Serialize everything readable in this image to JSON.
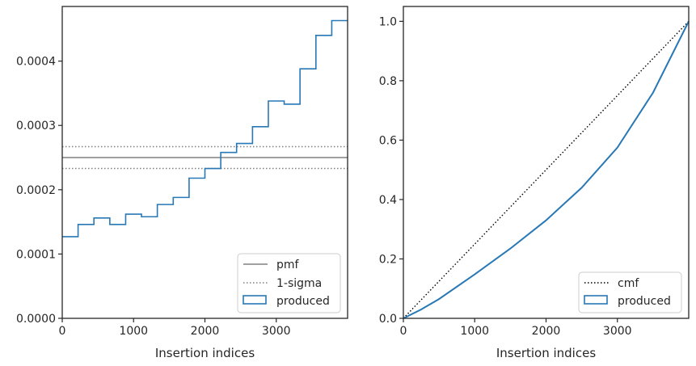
{
  "chart_data": [
    {
      "type": "histogram-step",
      "xlabel": "Insertion indices",
      "ylabel": "",
      "xlim": [
        0,
        4000
      ],
      "ylim": [
        0,
        0.000485
      ],
      "x_ticks": [
        0,
        1000,
        2000,
        3000
      ],
      "x_tick_labels": [
        "0",
        "1000",
        "2000",
        "3000"
      ],
      "y_ticks": [
        0,
        0.0001,
        0.0002,
        0.0003,
        0.0004
      ],
      "y_tick_labels": [
        "0.0000",
        "0.0001",
        "0.0002",
        "0.0003",
        "0.0004"
      ],
      "bin_edges": [
        0,
        222,
        444,
        667,
        889,
        1111,
        1333,
        1556,
        1778,
        2000,
        2222,
        2444,
        2667,
        2889,
        3111,
        3333,
        3556,
        3778,
        4000
      ],
      "series": [
        {
          "name": "produced",
          "style": "step",
          "color": "#2878b5",
          "values": [
            0.000127,
            0.000146,
            0.000156,
            0.000146,
            0.000162,
            0.000158,
            0.000177,
            0.000188,
            0.000218,
            0.000233,
            0.000258,
            0.000272,
            0.000298,
            0.000338,
            0.000333,
            0.000388,
            0.00044,
            0.000463
          ]
        }
      ],
      "reference_lines": [
        {
          "name": "pmf",
          "style": "solid",
          "color": "#808080",
          "y": 0.00025
        },
        {
          "name": "1-sigma",
          "style": "dotted",
          "color": "#808080",
          "y": 0.000267
        },
        {
          "name": "1-sigma",
          "style": "dotted",
          "color": "#808080",
          "y": 0.000233
        }
      ],
      "legend": {
        "placement": "lower-right",
        "entries": [
          "pmf",
          "1-sigma",
          "produced"
        ]
      }
    },
    {
      "type": "line",
      "xlabel": "Insertion indices",
      "ylabel": "",
      "xlim": [
        0,
        4000
      ],
      "ylim": [
        0,
        1.05
      ],
      "x_ticks": [
        0,
        1000,
        2000,
        3000
      ],
      "x_tick_labels": [
        "0",
        "1000",
        "2000",
        "3000"
      ],
      "y_ticks": [
        0,
        0.2,
        0.4,
        0.6,
        0.8,
        1.0
      ],
      "y_tick_labels": [
        "0.0",
        "0.2",
        "0.4",
        "0.6",
        "0.8",
        "1.0"
      ],
      "series": [
        {
          "name": "cmf",
          "style": "dotted",
          "color": "#000000",
          "x": [
            0,
            4000
          ],
          "y": [
            0,
            1.0
          ]
        },
        {
          "name": "produced",
          "style": "solid",
          "color": "#2878b5",
          "x": [
            0,
            250,
            500,
            1000,
            1500,
            2000,
            2500,
            3000,
            3500,
            4000
          ],
          "y": [
            0,
            0.03,
            0.065,
            0.148,
            0.235,
            0.33,
            0.44,
            0.575,
            0.76,
            1.0
          ]
        }
      ],
      "legend": {
        "placement": "lower-right",
        "entries": [
          "cmf",
          "produced"
        ]
      }
    }
  ]
}
